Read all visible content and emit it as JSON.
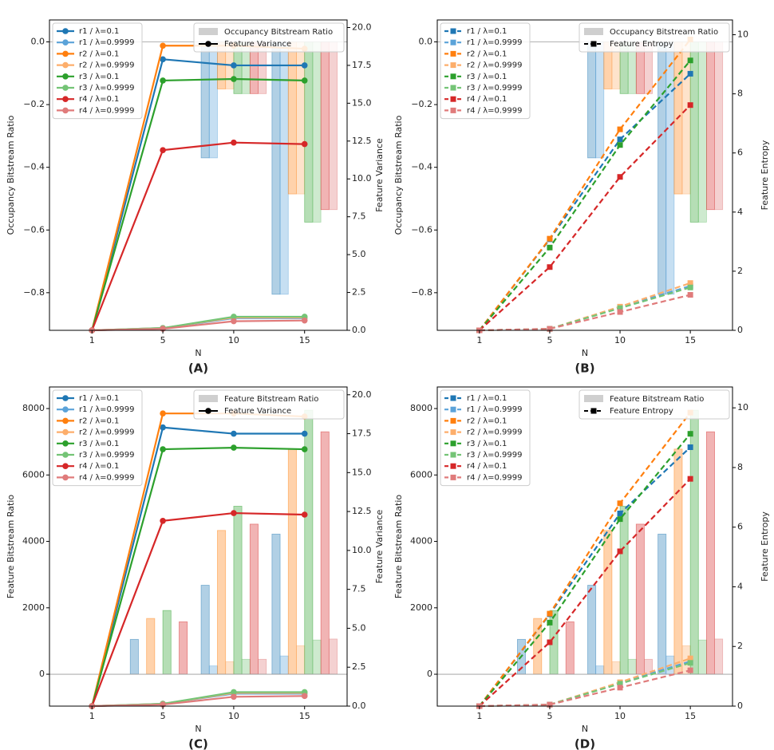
{
  "chart_data": [
    {
      "type": "combo",
      "panel_label": "(A)",
      "xlabel": "N",
      "ylabel": "Occupancy Bitstream Ratio",
      "y2label": "Feature Variance",
      "bar_legend": "Occupancy Bitstream Ratio",
      "line_legend": "Feature Variance",
      "marker": "circle",
      "dashed": false,
      "categories": [
        "1",
        "5",
        "10",
        "15"
      ],
      "ylim": [
        -0.92,
        0.07
      ],
      "yticks": [
        {
          "value": 0,
          "label": "0.0"
        },
        {
          "value": -0.2,
          "label": "−0.2"
        },
        {
          "value": -0.4,
          "label": "−0.4"
        },
        {
          "value": -0.6,
          "label": "−0.6"
        },
        {
          "value": -0.8,
          "label": "−0.8"
        }
      ],
      "y2lim": [
        0,
        20.5
      ],
      "y2ticks": [
        {
          "value": 0,
          "label": "0.0"
        },
        2.5,
        {
          "value": 5,
          "label": "5.0"
        },
        7.5,
        {
          "value": 10,
          "label": "10.0"
        },
        12.5,
        {
          "value": 15,
          "label": "15.0"
        },
        17.5,
        {
          "value": 20,
          "label": "20.0"
        }
      ],
      "series": [
        {
          "name": "r1 / λ=0.1",
          "color": "#1f77b4",
          "axis": "y2",
          "values": [
            0,
            17.9,
            17.5,
            17.5
          ],
          "bar_values": [
            0,
            0,
            -0.37,
            -0.805
          ]
        },
        {
          "name": "r1 / λ=0.9999",
          "color": "#5ba3d9",
          "axis": "y2",
          "values": [
            0,
            0.15,
            0.8,
            0.8
          ],
          "bar_values": [
            0,
            0,
            -0.37,
            -0.805
          ]
        },
        {
          "name": "r2 / λ=0.1",
          "color": "#ff7f0e",
          "axis": "y2",
          "values": [
            0,
            18.8,
            18.8,
            18.6
          ],
          "bar_values": [
            0,
            0,
            -0.15,
            -0.485
          ]
        },
        {
          "name": "r2 / λ=0.9999",
          "color": "#fdae6b",
          "axis": "y2",
          "values": [
            0,
            0.15,
            0.85,
            0.85
          ],
          "bar_values": [
            0,
            0,
            -0.15,
            -0.485
          ]
        },
        {
          "name": "r3 / λ=0.1",
          "color": "#2ca02c",
          "axis": "y2",
          "values": [
            0,
            16.5,
            16.6,
            16.5
          ],
          "bar_values": [
            0,
            0,
            -0.165,
            -0.575
          ]
        },
        {
          "name": "r3 / λ=0.9999",
          "color": "#74c476",
          "axis": "y2",
          "values": [
            0,
            0.15,
            0.9,
            0.9
          ],
          "bar_values": [
            0,
            0,
            -0.165,
            -0.575
          ]
        },
        {
          "name": "r4 / λ=0.1",
          "color": "#d62728",
          "axis": "y2",
          "values": [
            0,
            11.9,
            12.4,
            12.3
          ],
          "bar_values": [
            0,
            0,
            -0.165,
            -0.535
          ]
        },
        {
          "name": "r4 / λ=0.9999",
          "color": "#e07b7b",
          "axis": "y2",
          "values": [
            0,
            0.1,
            0.6,
            0.65
          ],
          "bar_values": [
            0,
            0,
            -0.165,
            -0.535
          ]
        }
      ]
    },
    {
      "type": "combo",
      "panel_label": "(B)",
      "xlabel": "N",
      "ylabel": "Occupancy Bitstream Ratio",
      "y2label": "Feature Entropy",
      "bar_legend": "Occupancy Bitstream Ratio",
      "line_legend": "Feature Entropy",
      "marker": "square",
      "dashed": true,
      "categories": [
        "1",
        "5",
        "10",
        "15"
      ],
      "ylim": [
        -0.92,
        0.07
      ],
      "yticks": [
        {
          "value": 0,
          "label": "0.0"
        },
        {
          "value": -0.2,
          "label": "−0.2"
        },
        {
          "value": -0.4,
          "label": "−0.4"
        },
        {
          "value": -0.6,
          "label": "−0.6"
        },
        {
          "value": -0.8,
          "label": "−0.8"
        }
      ],
      "y2lim": [
        0,
        10.5
      ],
      "y2ticks": [
        0,
        2,
        4,
        6,
        8,
        10
      ],
      "series": [
        {
          "name": "r1 / λ=0.1",
          "color": "#1f77b4",
          "axis": "y2",
          "values": [
            0,
            3.08,
            6.46,
            8.68
          ],
          "bar_values": [
            0,
            0,
            -0.37,
            -0.805
          ]
        },
        {
          "name": "r1 / λ=0.9999",
          "color": "#5ba3d9",
          "axis": "y2",
          "values": [
            0,
            0.05,
            0.78,
            1.5
          ],
          "bar_values": [
            0,
            0,
            -0.37,
            -0.805
          ]
        },
        {
          "name": "r2 / λ=0.1",
          "color": "#ff7f0e",
          "axis": "y2",
          "values": [
            0,
            3.1,
            6.8,
            9.84
          ],
          "bar_values": [
            0,
            0,
            -0.15,
            -0.485
          ]
        },
        {
          "name": "r2 / λ=0.9999",
          "color": "#fdae6b",
          "axis": "y2",
          "values": [
            0,
            0.05,
            0.8,
            1.6
          ],
          "bar_values": [
            0,
            0,
            -0.15,
            -0.485
          ]
        },
        {
          "name": "r3 / λ=0.1",
          "color": "#2ca02c",
          "axis": "y2",
          "values": [
            0,
            2.8,
            6.27,
            9.13
          ],
          "bar_values": [
            0,
            0,
            -0.165,
            -0.575
          ]
        },
        {
          "name": "r3 / λ=0.9999",
          "color": "#74c476",
          "axis": "y2",
          "values": [
            0,
            0.05,
            0.75,
            1.45
          ],
          "bar_values": [
            0,
            0,
            -0.165,
            -0.575
          ]
        },
        {
          "name": "r4 / λ=0.1",
          "color": "#d62728",
          "axis": "y2",
          "values": [
            0,
            2.14,
            5.19,
            7.62
          ],
          "bar_values": [
            0,
            0,
            -0.165,
            -0.535
          ]
        },
        {
          "name": "r4 / λ=0.9999",
          "color": "#e07b7b",
          "axis": "y2",
          "values": [
            0,
            0.05,
            0.62,
            1.2
          ],
          "bar_values": [
            0,
            0,
            -0.165,
            -0.535
          ]
        }
      ]
    },
    {
      "type": "combo",
      "panel_label": "(C)",
      "xlabel": "N",
      "ylabel": "Feature Bitstream Ratio",
      "y2label": "Feature Variance",
      "bar_legend": "Feature Bitstream Ratio",
      "line_legend": "Feature Variance",
      "marker": "circle",
      "dashed": false,
      "categories": [
        "1",
        "5",
        "10",
        "15"
      ],
      "ylim": [
        -960,
        8650
      ],
      "yticks": [
        0,
        2000,
        4000,
        6000,
        8000
      ],
      "y2lim": [
        0,
        20.5
      ],
      "y2ticks": [
        {
          "value": 0,
          "label": "0.0"
        },
        2.5,
        {
          "value": 5,
          "label": "5.0"
        },
        7.5,
        {
          "value": 10,
          "label": "10.0"
        },
        12.5,
        {
          "value": 15,
          "label": "15.0"
        },
        17.5,
        {
          "value": 20,
          "label": "20.0"
        }
      ],
      "series": [
        {
          "name": "r1 / λ=0.1",
          "color": "#1f77b4",
          "axis": "y2",
          "values": [
            0,
            17.9,
            17.5,
            17.5
          ],
          "bar_values": [
            0,
            1050,
            2680,
            4220
          ]
        },
        {
          "name": "r1 / λ=0.9999",
          "color": "#5ba3d9",
          "axis": "y2",
          "values": [
            0,
            0.15,
            0.8,
            0.8
          ],
          "bar_values": [
            0,
            0,
            250,
            550
          ]
        },
        {
          "name": "r2 / λ=0.1",
          "color": "#ff7f0e",
          "axis": "y2",
          "values": [
            0,
            18.8,
            18.8,
            18.6
          ],
          "bar_values": [
            0,
            1680,
            4330,
            6780
          ]
        },
        {
          "name": "r2 / λ=0.9999",
          "color": "#fdae6b",
          "axis": "y2",
          "values": [
            0,
            0.15,
            0.85,
            0.85
          ],
          "bar_values": [
            0,
            0,
            380,
            860
          ]
        },
        {
          "name": "r3 / λ=0.1",
          "color": "#2ca02c",
          "axis": "y2",
          "values": [
            0,
            16.5,
            16.6,
            16.5
          ],
          "bar_values": [
            0,
            1920,
            5060,
            7950
          ]
        },
        {
          "name": "r3 / λ=0.9999",
          "color": "#74c476",
          "axis": "y2",
          "values": [
            0,
            0.15,
            0.9,
            0.9
          ],
          "bar_values": [
            0,
            0,
            450,
            1030
          ]
        },
        {
          "name": "r4 / λ=0.1",
          "color": "#d62728",
          "axis": "y2",
          "values": [
            0,
            11.9,
            12.4,
            12.3
          ],
          "bar_values": [
            0,
            1580,
            4520,
            7300
          ]
        },
        {
          "name": "r4 / λ=0.9999",
          "color": "#e07b7b",
          "axis": "y2",
          "values": [
            0,
            0.1,
            0.6,
            0.65
          ],
          "bar_values": [
            0,
            0,
            450,
            1060
          ]
        }
      ]
    },
    {
      "type": "combo",
      "panel_label": "(D)",
      "xlabel": "N",
      "ylabel": "Feature Bitstream Ratio",
      "y2label": "Feature Entropy",
      "bar_legend": "Feature Bitstream Ratio",
      "line_legend": "Feature Entropy",
      "marker": "square",
      "dashed": true,
      "categories": [
        "1",
        "5",
        "10",
        "15"
      ],
      "ylim": [
        -960,
        8650
      ],
      "yticks": [
        0,
        2000,
        4000,
        6000,
        8000
      ],
      "y2lim": [
        0,
        10.7
      ],
      "y2ticks": [
        0,
        2,
        4,
        6,
        8,
        10
      ],
      "series": [
        {
          "name": "r1 / λ=0.1",
          "color": "#1f77b4",
          "axis": "y2",
          "values": [
            0,
            3.08,
            6.46,
            8.68
          ],
          "bar_values": [
            0,
            1050,
            2680,
            4220
          ]
        },
        {
          "name": "r1 / λ=0.9999",
          "color": "#5ba3d9",
          "axis": "y2",
          "values": [
            0,
            0.05,
            0.78,
            1.5
          ],
          "bar_values": [
            0,
            0,
            250,
            550
          ]
        },
        {
          "name": "r2 / λ=0.1",
          "color": "#ff7f0e",
          "axis": "y2",
          "values": [
            0,
            3.1,
            6.8,
            9.84
          ],
          "bar_values": [
            0,
            1680,
            4330,
            6780
          ]
        },
        {
          "name": "r2 / λ=0.9999",
          "color": "#fdae6b",
          "axis": "y2",
          "values": [
            0,
            0.05,
            0.8,
            1.6
          ],
          "bar_values": [
            0,
            0,
            380,
            860
          ]
        },
        {
          "name": "r3 / λ=0.1",
          "color": "#2ca02c",
          "axis": "y2",
          "values": [
            0,
            2.8,
            6.27,
            9.13
          ],
          "bar_values": [
            0,
            1920,
            5060,
            7950
          ]
        },
        {
          "name": "r3 / λ=0.9999",
          "color": "#74c476",
          "axis": "y2",
          "values": [
            0,
            0.05,
            0.75,
            1.45
          ],
          "bar_values": [
            0,
            0,
            450,
            1030
          ]
        },
        {
          "name": "r4 / λ=0.1",
          "color": "#d62728",
          "axis": "y2",
          "values": [
            0,
            2.14,
            5.19,
            7.62
          ],
          "bar_values": [
            0,
            1580,
            4520,
            7300
          ]
        },
        {
          "name": "r4 / λ=0.9999",
          "color": "#e07b7b",
          "axis": "y2",
          "values": [
            0,
            0.05,
            0.62,
            1.2
          ],
          "bar_values": [
            0,
            0,
            450,
            1060
          ]
        }
      ]
    }
  ]
}
